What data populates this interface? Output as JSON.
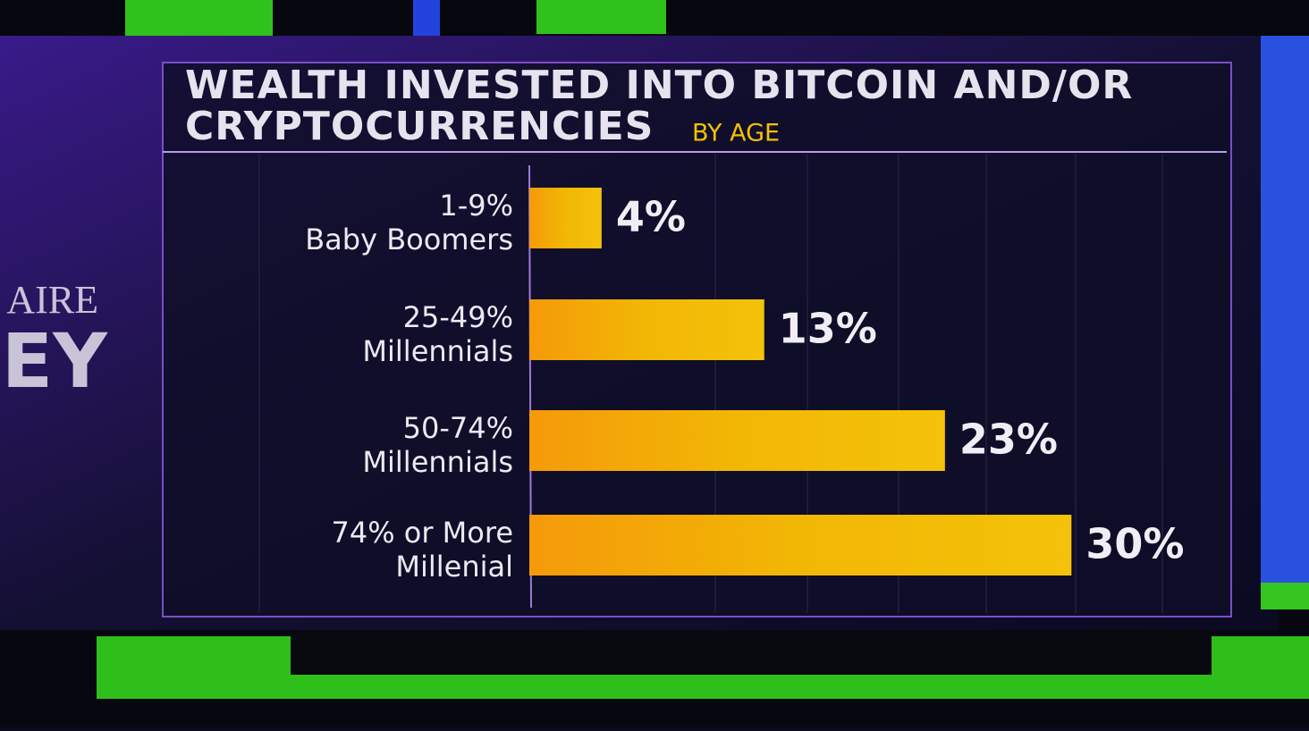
{
  "chart_data": {
    "type": "hbar",
    "title": "WEALTH INVESTED INTO BITCOIN AND/OR CRYPTOCURRENCIES",
    "subtitle": "BY AGE",
    "categories": [
      "1-9%",
      "25-49%",
      "50-74%",
      "74% or More"
    ],
    "groups": [
      "Baby Boomers",
      "Millennials",
      "Millennials",
      "Millenial"
    ],
    "values": [
      4,
      13,
      23,
      30
    ],
    "value_labels": [
      "4%",
      "13%",
      "23%",
      "30%"
    ],
    "color": "#f2b705",
    "xlim": [
      0,
      38
    ],
    "background_text": [
      "AIRE",
      "EY"
    ]
  }
}
